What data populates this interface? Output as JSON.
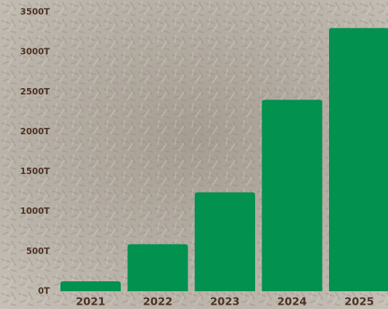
{
  "chart_data": {
    "type": "bar",
    "categories": [
      "2021",
      "2022",
      "2023",
      "2024",
      "2025"
    ],
    "values": [
      125,
      590,
      1240,
      2400,
      3300
    ],
    "color": "#03914f",
    "ylim": [
      0,
      3500
    ],
    "yticks": [
      {
        "value": 0,
        "label": "0T"
      },
      {
        "value": 500,
        "label": "500T"
      },
      {
        "value": 1000,
        "label": "1000T"
      },
      {
        "value": 1500,
        "label": "1500T"
      },
      {
        "value": 2000,
        "label": "2000T"
      },
      {
        "value": 2500,
        "label": "2500T"
      },
      {
        "value": 3000,
        "label": "3000T"
      },
      {
        "value": 3500,
        "label": "3500T"
      }
    ],
    "grid": false
  }
}
